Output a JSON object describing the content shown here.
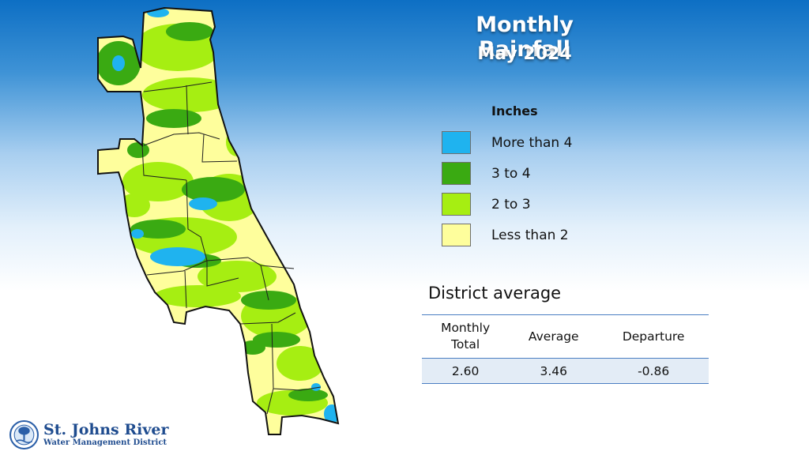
{
  "title": "Monthly Rainfall",
  "subtitle": "May 2024",
  "legend": {
    "heading": "Inches",
    "items": [
      {
        "label": "More than 4",
        "color": "#1fb3ef"
      },
      {
        "label": "3 to 4",
        "color": "#3aaa12"
      },
      {
        "label": "2 to 3",
        "color": "#a6ee12"
      },
      {
        "label": "Less than 2",
        "color": "#fefe9c"
      }
    ]
  },
  "district_average": {
    "heading": "District average",
    "col_monthly_line1": "Monthly",
    "col_monthly_line2": "Total",
    "col_average": "Average",
    "col_departure": "Departure",
    "monthly_total": "2.60",
    "average": "3.46",
    "departure": "-0.86"
  },
  "logo": {
    "name": "St. Johns River",
    "subtitle": "Water Management District"
  },
  "colors": {
    "background_top": "#0d6fc4",
    "table_accent": "#4a7ec2",
    "table_row": "#e3ecf6"
  }
}
